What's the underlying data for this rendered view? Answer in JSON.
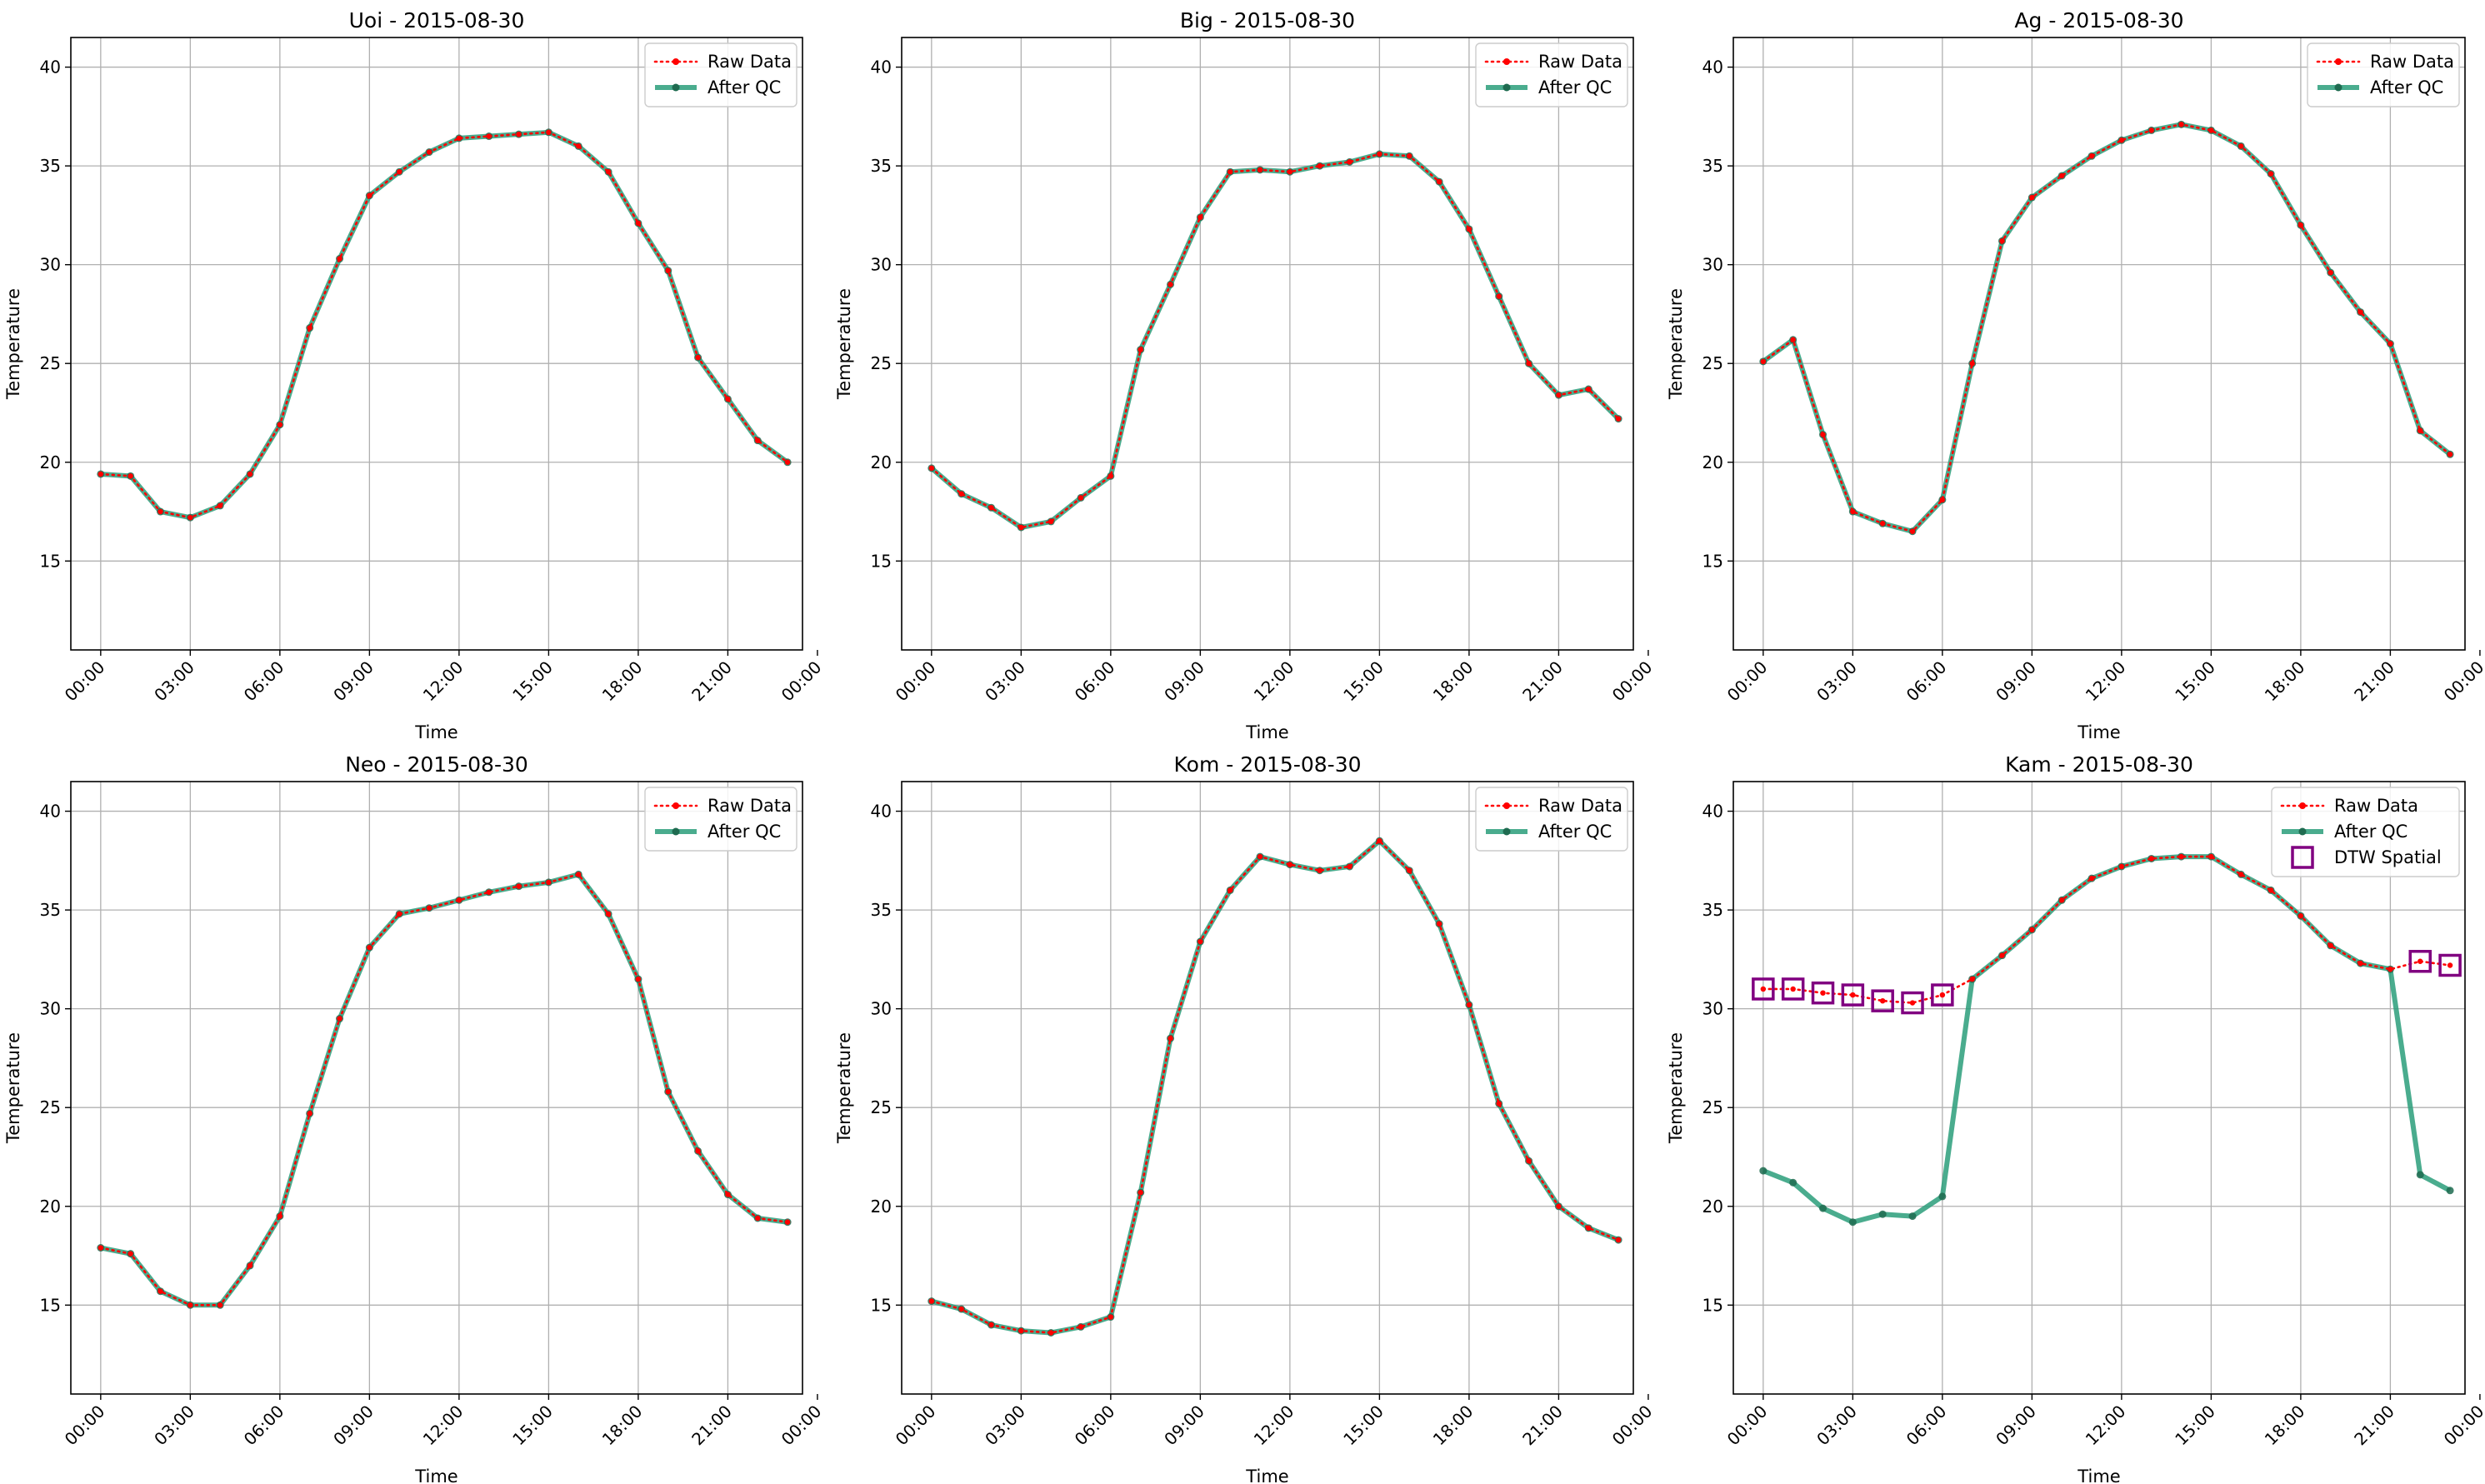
{
  "colors": {
    "raw": "#ff0000",
    "qc": "#2a9d7a",
    "qc_marker": "#1f6b50",
    "flag": "#800080",
    "grid": "#b0b0b0",
    "axes": "#000000"
  },
  "chart_data": [
    {
      "type": "line",
      "title": "Uoi - 2015-08-30",
      "xlabel": "Time",
      "ylabel": "Temperature",
      "grid": true,
      "legend_position": "top-right",
      "xlim": [
        -1,
        23.5
      ],
      "ylim": [
        10.5,
        41.5
      ],
      "x_ticks": [
        0,
        3,
        6,
        9,
        12,
        15,
        18,
        21,
        24
      ],
      "x_tick_labels": [
        "00:00",
        "03:00",
        "06:00",
        "09:00",
        "12:00",
        "15:00",
        "18:00",
        "21:00",
        "00:00"
      ],
      "y_ticks": [
        15,
        20,
        25,
        30,
        35,
        40
      ],
      "x": [
        0,
        1,
        2,
        3,
        4,
        5,
        6,
        7,
        8,
        9,
        10,
        11,
        12,
        13,
        14,
        15,
        16,
        17,
        18,
        19,
        20,
        21,
        22,
        23
      ],
      "series": [
        {
          "name": "Raw Data",
          "style": "raw",
          "values": [
            19.4,
            19.3,
            17.5,
            17.2,
            17.8,
            19.4,
            21.9,
            26.8,
            30.3,
            33.5,
            34.7,
            35.7,
            36.4,
            36.5,
            36.6,
            36.7,
            36.0,
            34.7,
            32.1,
            29.7,
            25.3,
            23.2,
            21.1,
            20.0
          ]
        },
        {
          "name": "After QC",
          "style": "qc",
          "values": [
            19.4,
            19.3,
            17.5,
            17.2,
            17.8,
            19.4,
            21.9,
            26.8,
            30.3,
            33.5,
            34.7,
            35.7,
            36.4,
            36.5,
            36.6,
            36.7,
            36.0,
            34.7,
            32.1,
            29.7,
            25.3,
            23.2,
            21.1,
            20.0
          ]
        }
      ]
    },
    {
      "type": "line",
      "title": "Big - 2015-08-30",
      "xlabel": "Time",
      "ylabel": "Temperature",
      "grid": true,
      "legend_position": "top-right",
      "xlim": [
        -1,
        23.5
      ],
      "ylim": [
        10.5,
        41.5
      ],
      "x_ticks": [
        0,
        3,
        6,
        9,
        12,
        15,
        18,
        21,
        24
      ],
      "x_tick_labels": [
        "00:00",
        "03:00",
        "06:00",
        "09:00",
        "12:00",
        "15:00",
        "18:00",
        "21:00",
        "00:00"
      ],
      "y_ticks": [
        15,
        20,
        25,
        30,
        35,
        40
      ],
      "x": [
        0,
        1,
        2,
        3,
        4,
        5,
        6,
        7,
        8,
        9,
        10,
        11,
        12,
        13,
        14,
        15,
        16,
        17,
        18,
        19,
        20,
        21,
        22,
        23
      ],
      "series": [
        {
          "name": "Raw Data",
          "style": "raw",
          "values": [
            19.7,
            18.4,
            17.7,
            16.7,
            17.0,
            18.2,
            19.3,
            25.7,
            29.0,
            32.4,
            34.7,
            34.8,
            34.7,
            35.0,
            35.2,
            35.6,
            35.5,
            34.2,
            31.8,
            28.4,
            25.0,
            23.4,
            23.7,
            22.2
          ]
        },
        {
          "name": "After QC",
          "style": "qc",
          "values": [
            19.7,
            18.4,
            17.7,
            16.7,
            17.0,
            18.2,
            19.3,
            25.7,
            29.0,
            32.4,
            34.7,
            34.8,
            34.7,
            35.0,
            35.2,
            35.6,
            35.5,
            34.2,
            31.8,
            28.4,
            25.0,
            23.4,
            23.7,
            22.2
          ]
        }
      ]
    },
    {
      "type": "line",
      "title": "Ag - 2015-08-30",
      "xlabel": "Time",
      "ylabel": "Temperature",
      "grid": true,
      "legend_position": "top-right",
      "xlim": [
        -1,
        23.5
      ],
      "ylim": [
        10.5,
        41.5
      ],
      "x_ticks": [
        0,
        3,
        6,
        9,
        12,
        15,
        18,
        21,
        24
      ],
      "x_tick_labels": [
        "00:00",
        "03:00",
        "06:00",
        "09:00",
        "12:00",
        "15:00",
        "18:00",
        "21:00",
        "00:00"
      ],
      "y_ticks": [
        15,
        20,
        25,
        30,
        35,
        40
      ],
      "x": [
        0,
        1,
        2,
        3,
        4,
        5,
        6,
        7,
        8,
        9,
        10,
        11,
        12,
        13,
        14,
        15,
        16,
        17,
        18,
        19,
        20,
        21,
        22,
        23
      ],
      "series": [
        {
          "name": "Raw Data",
          "style": "raw",
          "values": [
            25.1,
            26.2,
            21.4,
            17.5,
            16.9,
            16.5,
            18.1,
            25.0,
            31.2,
            33.4,
            34.5,
            35.5,
            36.3,
            36.8,
            37.1,
            36.8,
            36.0,
            34.6,
            32.0,
            29.6,
            27.6,
            26.0,
            21.6,
            20.4
          ]
        },
        {
          "name": "After QC",
          "style": "qc",
          "values": [
            25.1,
            26.2,
            21.4,
            17.5,
            16.9,
            16.5,
            18.1,
            25.0,
            31.2,
            33.4,
            34.5,
            35.5,
            36.3,
            36.8,
            37.1,
            36.8,
            36.0,
            34.6,
            32.0,
            29.6,
            27.6,
            26.0,
            21.6,
            20.4
          ]
        }
      ]
    },
    {
      "type": "line",
      "title": "Neo - 2015-08-30",
      "xlabel": "Time",
      "ylabel": "Temperature",
      "grid": true,
      "legend_position": "top-right",
      "xlim": [
        -1,
        23.5
      ],
      "ylim": [
        10.5,
        41.5
      ],
      "x_ticks": [
        0,
        3,
        6,
        9,
        12,
        15,
        18,
        21,
        24
      ],
      "x_tick_labels": [
        "00:00",
        "03:00",
        "06:00",
        "09:00",
        "12:00",
        "15:00",
        "18:00",
        "21:00",
        "00:00"
      ],
      "y_ticks": [
        15,
        20,
        25,
        30,
        35,
        40
      ],
      "x": [
        0,
        1,
        2,
        3,
        4,
        5,
        6,
        7,
        8,
        9,
        10,
        11,
        12,
        13,
        14,
        15,
        16,
        17,
        18,
        19,
        20,
        21,
        22,
        23
      ],
      "series": [
        {
          "name": "Raw Data",
          "style": "raw",
          "values": [
            17.9,
            17.6,
            15.7,
            15.0,
            15.0,
            17.0,
            19.5,
            24.7,
            29.5,
            33.1,
            34.8,
            35.1,
            35.5,
            35.9,
            36.2,
            36.4,
            36.8,
            34.8,
            31.5,
            25.8,
            22.8,
            20.6,
            19.4,
            19.2
          ]
        },
        {
          "name": "After QC",
          "style": "qc",
          "values": [
            17.9,
            17.6,
            15.7,
            15.0,
            15.0,
            17.0,
            19.5,
            24.7,
            29.5,
            33.1,
            34.8,
            35.1,
            35.5,
            35.9,
            36.2,
            36.4,
            36.8,
            34.8,
            31.5,
            25.8,
            22.8,
            20.6,
            19.4,
            19.2
          ]
        }
      ]
    },
    {
      "type": "line",
      "title": "Kom - 2015-08-30",
      "xlabel": "Time",
      "ylabel": "Temperature",
      "grid": true,
      "legend_position": "top-right",
      "xlim": [
        -1,
        23.5
      ],
      "ylim": [
        10.5,
        41.5
      ],
      "x_ticks": [
        0,
        3,
        6,
        9,
        12,
        15,
        18,
        21,
        24
      ],
      "x_tick_labels": [
        "00:00",
        "03:00",
        "06:00",
        "09:00",
        "12:00",
        "15:00",
        "18:00",
        "21:00",
        "00:00"
      ],
      "y_ticks": [
        15,
        20,
        25,
        30,
        35,
        40
      ],
      "x": [
        0,
        1,
        2,
        3,
        4,
        5,
        6,
        7,
        8,
        9,
        10,
        11,
        12,
        13,
        14,
        15,
        16,
        17,
        18,
        19,
        20,
        21,
        22,
        23
      ],
      "series": [
        {
          "name": "Raw Data",
          "style": "raw",
          "values": [
            15.2,
            14.8,
            14.0,
            13.7,
            13.6,
            13.9,
            14.4,
            20.7,
            28.5,
            33.4,
            36.0,
            37.7,
            37.3,
            37.0,
            37.2,
            38.5,
            37.0,
            34.3,
            30.2,
            25.2,
            22.3,
            20.0,
            18.9,
            18.3
          ]
        },
        {
          "name": "After QC",
          "style": "qc",
          "values": [
            15.2,
            14.8,
            14.0,
            13.7,
            13.6,
            13.9,
            14.4,
            20.7,
            28.5,
            33.4,
            36.0,
            37.7,
            37.3,
            37.0,
            37.2,
            38.5,
            37.0,
            34.3,
            30.2,
            25.2,
            22.3,
            20.0,
            18.9,
            18.3
          ]
        }
      ]
    },
    {
      "type": "line",
      "title": "Kam - 2015-08-30",
      "xlabel": "Time",
      "ylabel": "Temperature",
      "grid": true,
      "legend_position": "top-right",
      "xlim": [
        -1,
        23.5
      ],
      "ylim": [
        10.5,
        41.5
      ],
      "x_ticks": [
        0,
        3,
        6,
        9,
        12,
        15,
        18,
        21,
        24
      ],
      "x_tick_labels": [
        "00:00",
        "03:00",
        "06:00",
        "09:00",
        "12:00",
        "15:00",
        "18:00",
        "21:00",
        "00:00"
      ],
      "y_ticks": [
        15,
        20,
        25,
        30,
        35,
        40
      ],
      "x": [
        0,
        1,
        2,
        3,
        4,
        5,
        6,
        7,
        8,
        9,
        10,
        11,
        12,
        13,
        14,
        15,
        16,
        17,
        18,
        19,
        20,
        21,
        22,
        23
      ],
      "series": [
        {
          "name": "Raw Data",
          "style": "raw",
          "values": [
            31.0,
            31.0,
            30.8,
            30.7,
            30.4,
            30.3,
            30.7,
            31.5,
            32.7,
            34.0,
            35.5,
            36.6,
            37.2,
            37.6,
            37.7,
            37.7,
            36.8,
            36.0,
            34.7,
            33.2,
            32.3,
            32.0,
            32.4,
            32.2
          ]
        },
        {
          "name": "After QC",
          "style": "qc",
          "values": [
            21.8,
            21.2,
            19.9,
            19.2,
            19.6,
            19.5,
            20.5,
            31.5,
            32.7,
            34.0,
            35.5,
            36.6,
            37.2,
            37.6,
            37.7,
            37.7,
            36.8,
            36.0,
            34.7,
            33.2,
            32.3,
            32.0,
            21.6,
            20.8
          ]
        },
        {
          "name": "DTW Spatial",
          "style": "flag",
          "x": [
            0,
            1,
            2,
            3,
            4,
            5,
            6,
            22,
            23
          ],
          "values": [
            31.0,
            31.0,
            30.8,
            30.7,
            30.4,
            30.3,
            30.7,
            32.4,
            32.2
          ]
        }
      ]
    }
  ]
}
